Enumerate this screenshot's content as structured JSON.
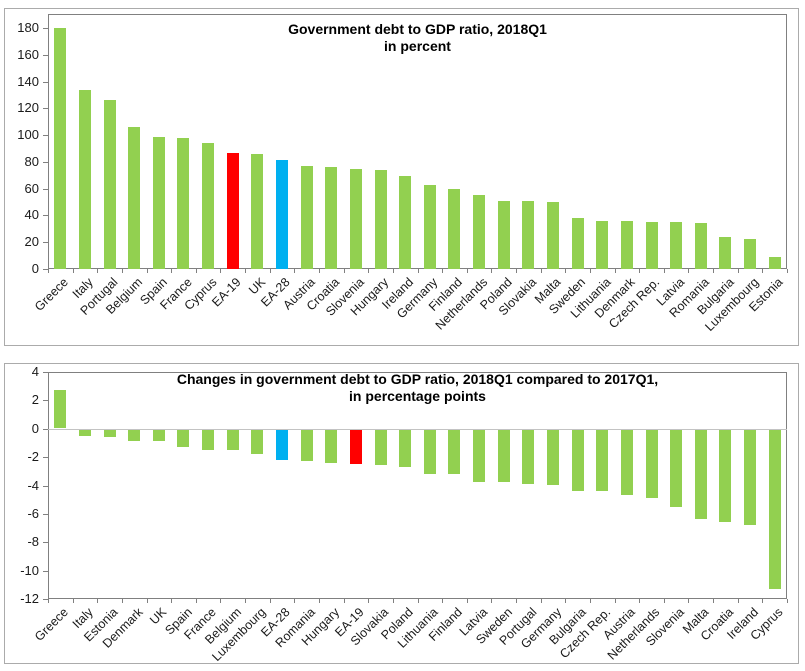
{
  "page": {
    "background": "#ffffff"
  },
  "style": {
    "frame_color": "#808080",
    "tick_color": "#808080",
    "zero_line_color": "#c3c3c3",
    "panel_border_color": "#ababab",
    "text_color": "#1a1a1a"
  },
  "chart_data": [
    {
      "type": "bar",
      "title": "Government debt to GDP ratio, 2018Q1",
      "subtitle": "in percent",
      "xlabel": "",
      "ylabel": "",
      "grid": false,
      "legend": "none",
      "ylim": [
        0,
        190.5
      ],
      "y_ticks": [
        180,
        160,
        140,
        120,
        100,
        80,
        60,
        40,
        20,
        0
      ],
      "categories": [
        "Greece",
        "Italy",
        "Portugal",
        "Belgium",
        "Spain",
        "France",
        "Cyprus",
        "EA-19",
        "UK",
        "EA-28",
        "Austria",
        "Croatia",
        "Slovenia",
        "Hungary",
        "Ireland",
        "Germany",
        "Finland",
        "Netherlands",
        "Poland",
        "Slovakia",
        "Malta",
        "Sweden",
        "Lithuania",
        "Denmark",
        "Czech Rep.",
        "Latvia",
        "Romania",
        "Bulgaria",
        "Luxembourg",
        "Estonia"
      ],
      "values": [
        180.4,
        133.4,
        126.4,
        106.3,
        98.8,
        97.7,
        94.5,
        86.8,
        85.8,
        81.5,
        77.1,
        76.2,
        75.0,
        73.9,
        69.3,
        62.9,
        59.8,
        55.2,
        51.0,
        50.9,
        50.1,
        38.0,
        36.1,
        35.7,
        35.4,
        35.0,
        34.2,
        24.1,
        22.2,
        8.7
      ],
      "bar_color_default": "#92d050",
      "bar_color_overrides": {
        "EA-19": "#ff0000",
        "EA-28": "#00b0f0"
      }
    },
    {
      "type": "bar",
      "title": "Changes in government debt to GDP ratio, 2018Q1 compared to 2017Q1,",
      "subtitle": "in percentage points",
      "xlabel": "",
      "ylabel": "",
      "grid": false,
      "legend": "none",
      "ylim": [
        -12,
        4
      ],
      "y_ticks": [
        4,
        2,
        0,
        -2,
        -4,
        -6,
        -8,
        -10,
        -12
      ],
      "categories": [
        "Greece",
        "Italy",
        "Estonia",
        "Denmark",
        "UK",
        "Spain",
        "France",
        "Belgium",
        "Luxembourg",
        "EA-28",
        "Romania",
        "Hungary",
        "EA-19",
        "Slovakia",
        "Poland",
        "Lithuania",
        "Finland",
        "Latvia",
        "Sweden",
        "Portugal",
        "Germany",
        "Bulgaria",
        "Czech Rep.",
        "Austria",
        "Netherlands",
        "Slovenia",
        "Malta",
        "Croatia",
        "Ireland",
        "Cyprus"
      ],
      "values": [
        2.7,
        -0.4,
        -0.5,
        -0.8,
        -0.8,
        -1.2,
        -1.4,
        -1.4,
        -1.7,
        -2.1,
        -2.2,
        -2.3,
        -2.4,
        -2.5,
        -2.6,
        -3.1,
        -3.1,
        -3.7,
        -3.7,
        -3.8,
        -3.9,
        -4.3,
        -4.3,
        -4.6,
        -4.8,
        -5.4,
        -6.3,
        -6.5,
        -6.7,
        -11.2
      ],
      "bar_color_default": "#92d050",
      "bar_color_overrides": {
        "EA-19": "#ff0000",
        "EA-28": "#00b0f0"
      }
    }
  ]
}
